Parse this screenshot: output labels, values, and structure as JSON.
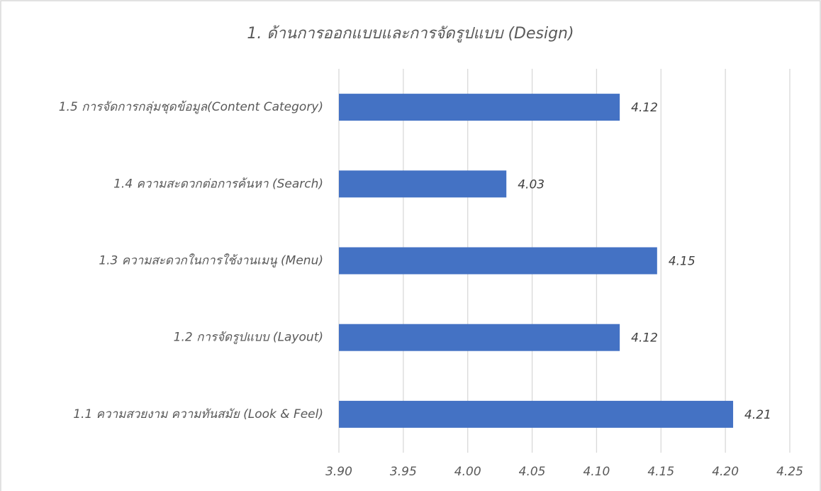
{
  "chart_data": {
    "type": "hbar",
    "title": "1. ด้านการออกแบบและการจัดรูปแบบ (Design)",
    "categories": [
      "1.1 ความสวยงาม ความทันสมัย (Look & Feel)",
      "1.2 การจัดรูปแบบ (Layout)",
      "1.3 ความสะดวกในการใช้งานเมนู (Menu)",
      "1.4 ความสะดวกต่อการค้นหา (Search)",
      "1.5 การจัดการกลุ่มชุดข้อมูล(Content Category)"
    ],
    "values": [
      4.206,
      4.118,
      4.147,
      4.03,
      4.118
    ],
    "value_labels": [
      "4.21",
      "4.12",
      "4.15",
      "4.03",
      "4.12"
    ],
    "color": "#4472c4",
    "xlim": [
      3.9,
      4.25
    ],
    "xticks": [
      {
        "value": 3.9,
        "label": "3.90"
      },
      {
        "value": 3.95,
        "label": "3.95"
      },
      {
        "value": 4.0,
        "label": "4.00"
      },
      {
        "value": 4.05,
        "label": "4.05"
      },
      {
        "value": 4.1,
        "label": "4.10"
      },
      {
        "value": 4.15,
        "label": "4.15"
      },
      {
        "value": 4.2,
        "label": "4.20"
      },
      {
        "value": 4.25,
        "label": "4.25"
      }
    ],
    "grid": true
  }
}
